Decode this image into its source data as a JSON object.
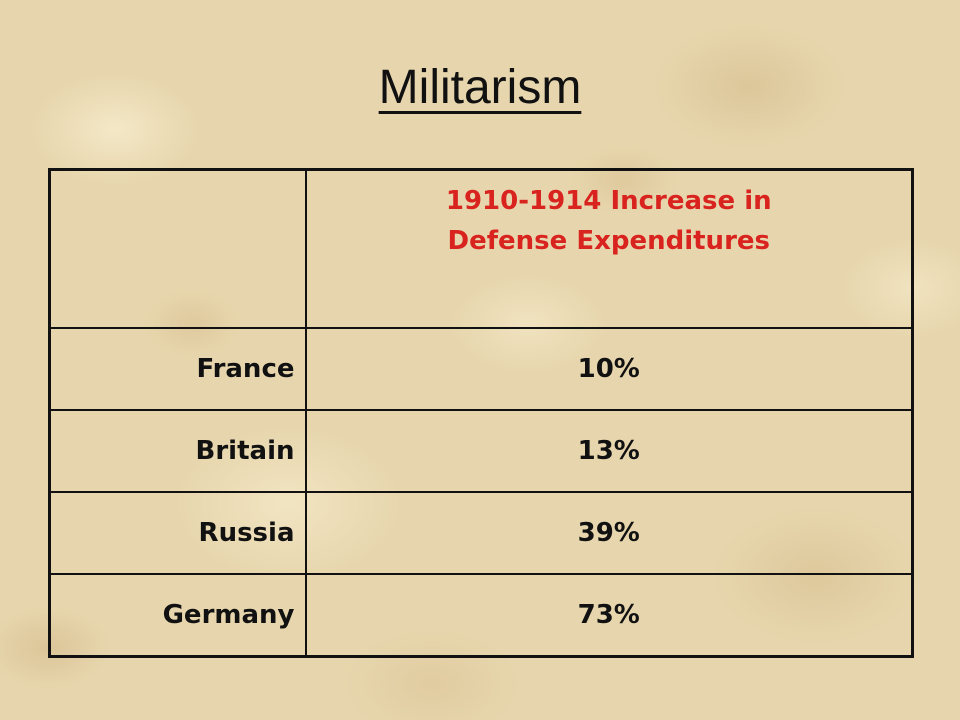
{
  "slide": {
    "title": "Militarism",
    "accent_color": "#d9231f"
  },
  "table": {
    "header": {
      "corner": "",
      "line1": "1910-1914 Increase in",
      "line2": "Defense Expenditures"
    },
    "rows": [
      {
        "country": "France",
        "value": "10%"
      },
      {
        "country": "Britain",
        "value": "13%"
      },
      {
        "country": "Russia",
        "value": "39%"
      },
      {
        "country": "Germany",
        "value": "73%"
      }
    ]
  }
}
